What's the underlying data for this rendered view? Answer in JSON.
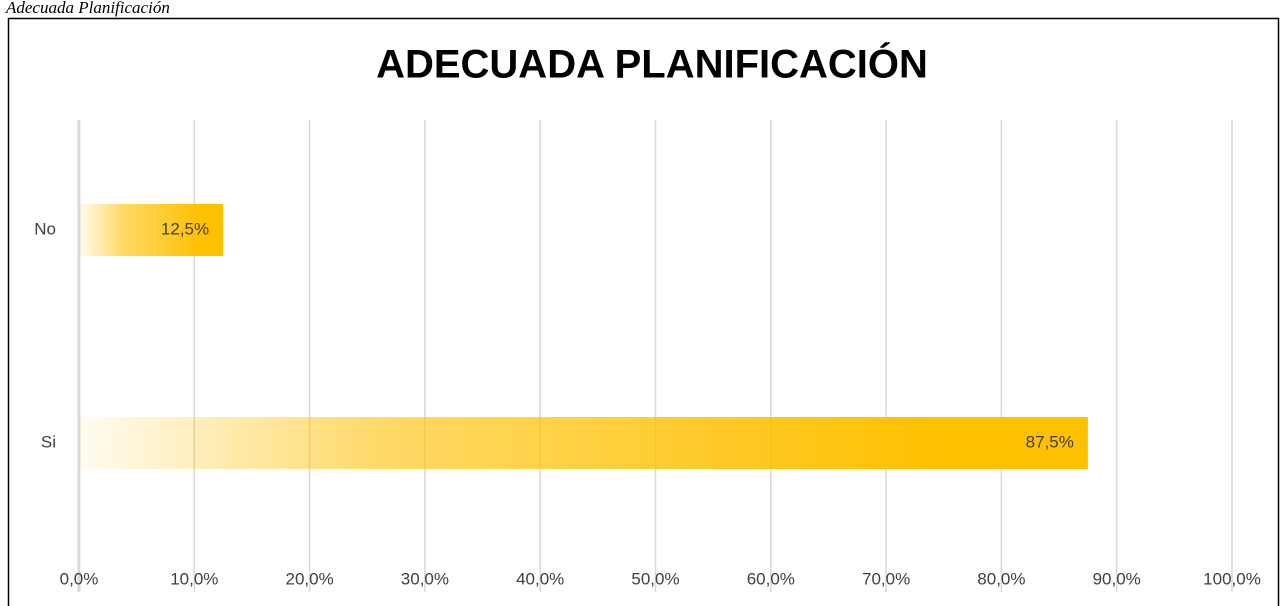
{
  "chart_data": {
    "type": "hbar",
    "caption": "Adecuada Planificación",
    "title": "ADECUADA PLANIFICACIÓN",
    "categories": [
      "No",
      "Si"
    ],
    "values": [
      12.5,
      87.5
    ],
    "value_labels": [
      "12,5%",
      "87,5%"
    ],
    "color": "#ffc000",
    "xlim": [
      0,
      100
    ],
    "xticks": [
      {
        "value": 0,
        "label": "0,0%"
      },
      {
        "value": 10,
        "label": "10,0%"
      },
      {
        "value": 20,
        "label": "20,0%"
      },
      {
        "value": 30,
        "label": "30,0%"
      },
      {
        "value": 40,
        "label": "40,0%"
      },
      {
        "value": 50,
        "label": "50,0%"
      },
      {
        "value": 60,
        "label": "60,0%"
      },
      {
        "value": 70,
        "label": "70,0%"
      },
      {
        "value": 80,
        "label": "80,0%"
      },
      {
        "value": 90,
        "label": "90,0%"
      },
      {
        "value": 100,
        "label": "100,0%"
      }
    ],
    "grid": true
  }
}
